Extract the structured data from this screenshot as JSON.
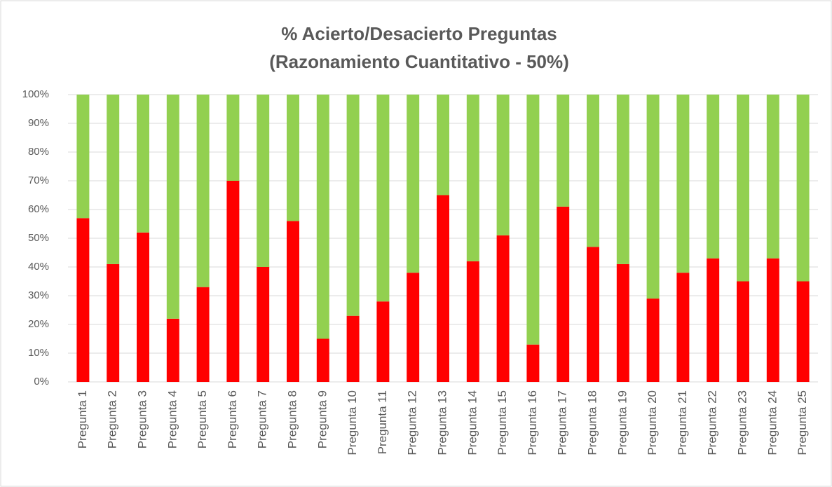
{
  "chart_data": {
    "type": "stacked_bar",
    "title": "% Acierto/Desacierto Preguntas",
    "subtitle": "(Razonamiento Cuantitativo - 50%)",
    "categories": [
      "Pregunta 1",
      "Pregunta 2",
      "Pregunta 3",
      "Pregunta 4",
      "Pregunta 5",
      "Pregunta 6",
      "Pregunta 7",
      "Pregunta 8",
      "Pregunta 9",
      "Pregunta 10",
      "Pregunta 11",
      "Pregunta 12",
      "Pregunta 13",
      "Pregunta 14",
      "Pregunta 15",
      "Pregunta 16",
      "Pregunta 17",
      "Pregunta 18",
      "Pregunta 19",
      "Pregunta 20",
      "Pregunta 21",
      "Pregunta 22",
      "Pregunta 23",
      "Pregunta 24",
      "Pregunta 25"
    ],
    "series": [
      {
        "color": "#ff0000",
        "values": [
          57,
          41,
          52,
          22,
          33,
          70,
          40,
          56,
          15,
          23,
          28,
          38,
          65,
          42,
          51,
          13,
          61,
          47,
          41,
          29,
          38,
          43,
          35,
          43,
          35
        ]
      },
      {
        "color": "#92d050",
        "values": [
          43,
          59,
          48,
          78,
          67,
          30,
          60,
          44,
          85,
          77,
          72,
          62,
          35,
          58,
          49,
          87,
          39,
          53,
          59,
          71,
          62,
          57,
          65,
          57,
          65
        ]
      }
    ],
    "ylim": [
      0,
      100
    ],
    "yticks": [
      {
        "value": 0,
        "label": "0%"
      },
      {
        "value": 10,
        "label": "10%"
      },
      {
        "value": 20,
        "label": "20%"
      },
      {
        "value": 30,
        "label": "30%"
      },
      {
        "value": 40,
        "label": "40%"
      },
      {
        "value": 50,
        "label": "50%"
      },
      {
        "value": 60,
        "label": "60%"
      },
      {
        "value": 70,
        "label": "70%"
      },
      {
        "value": 80,
        "label": "80%"
      },
      {
        "value": 90,
        "label": "90%"
      },
      {
        "value": 100,
        "label": "100%"
      }
    ],
    "grid": true
  }
}
